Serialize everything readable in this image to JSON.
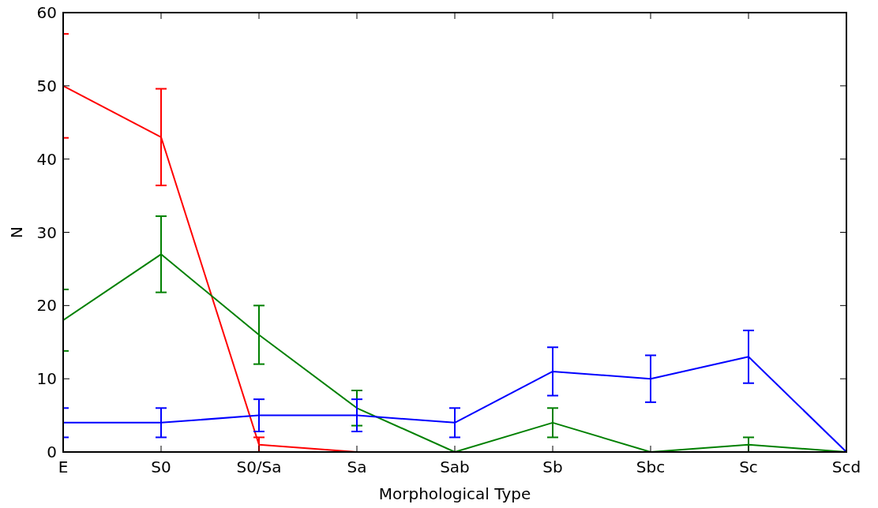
{
  "chart_data": {
    "type": "line",
    "xlabel": "Morphological Type",
    "ylabel": "N",
    "categories": [
      "E",
      "S0",
      "S0/Sa",
      "Sa",
      "Sab",
      "Sb",
      "Sbc",
      "Sc",
      "Scd"
    ],
    "ylim": [
      0,
      60
    ],
    "yticks": [
      0,
      10,
      20,
      30,
      40,
      50,
      60
    ],
    "grid": false,
    "marker": "none",
    "line_style": "solid",
    "series": [
      {
        "color": "#ff0000",
        "values": [
          50,
          43,
          1,
          0,
          null,
          null,
          null,
          null,
          null
        ],
        "errors": [
          7.1,
          6.6,
          1,
          0,
          null,
          null,
          null,
          null,
          null
        ]
      },
      {
        "color": "#008000",
        "values": [
          18,
          27,
          16,
          6,
          0,
          4,
          0,
          1,
          0
        ],
        "errors": [
          4.2,
          5.2,
          4,
          2.4,
          0,
          2,
          0,
          1,
          0
        ]
      },
      {
        "color": "#0000ff",
        "values": [
          4,
          4,
          5,
          5,
          4,
          11,
          10,
          13,
          0
        ],
        "errors": [
          2,
          2,
          2.2,
          2.2,
          2,
          3.3,
          3.2,
          3.6,
          0
        ]
      }
    ]
  }
}
